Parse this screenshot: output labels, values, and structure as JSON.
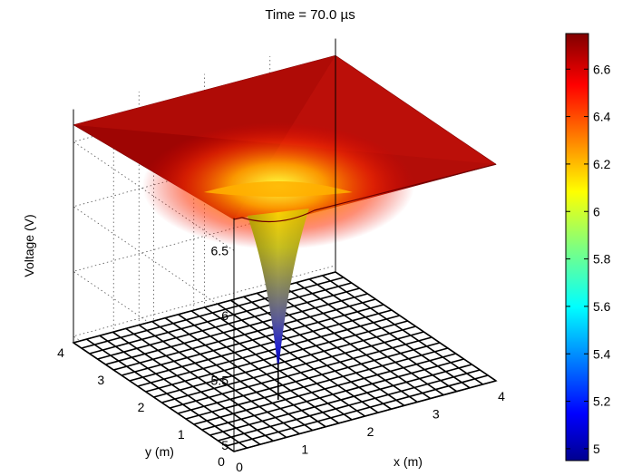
{
  "chart_data": {
    "type": "surface",
    "title": "Time = 70.0 µs",
    "xlabel": "x (m)",
    "ylabel": "y (m)",
    "zlabel": "Voltage (V)",
    "x_range": [
      0,
      4
    ],
    "y_range": [
      0,
      4
    ],
    "z_range": [
      4.95,
      6.75
    ],
    "x_ticks": [
      "0",
      "1",
      "2",
      "3",
      "4"
    ],
    "y_ticks": [
      "0",
      "1",
      "2",
      "3",
      "4"
    ],
    "z_ticks": [
      "5",
      "5.5",
      "6",
      "6.5"
    ],
    "colormap": "jet",
    "colorbar": {
      "range": [
        4.95,
        6.75
      ],
      "ticks": [
        "5",
        "5.2",
        "5.4",
        "5.6",
        "5.8",
        "6",
        "6.2",
        "6.4",
        "6.6"
      ]
    },
    "surface_corner_values": {
      "x0_y0": 6.74,
      "x4_y0": 6.62,
      "x0_y4": 6.63,
      "x4_y4": 6.62
    },
    "dip": {
      "x": 1.9,
      "y": 2.0,
      "min_voltage": 4.95
    },
    "grid": true,
    "ground_plane_mesh": "20 x 20 black wireframe at z = 4.95"
  }
}
